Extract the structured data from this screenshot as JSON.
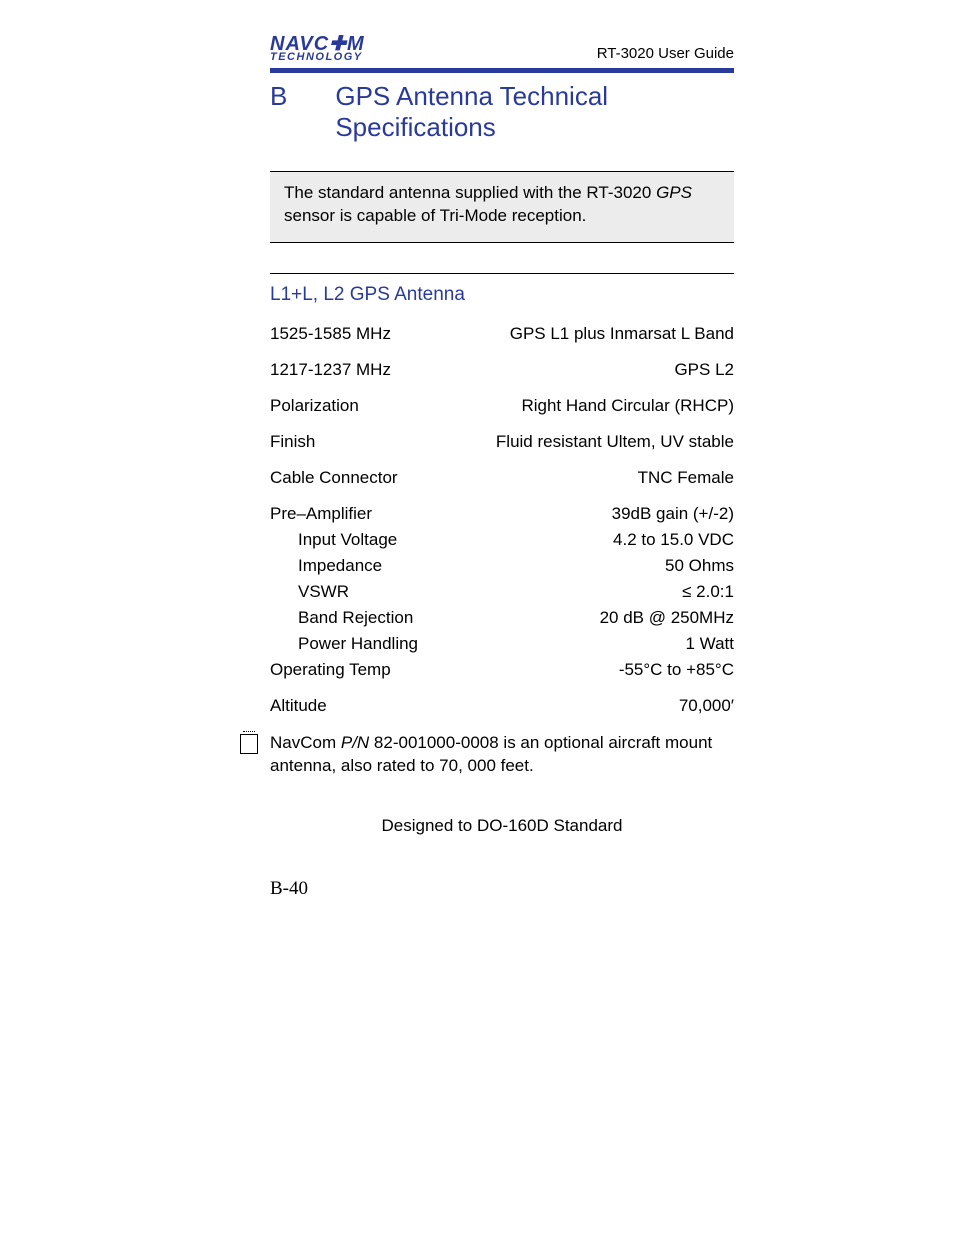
{
  "header": {
    "logo_top": "NAVC✚M",
    "logo_bottom": "TECHNOLOGY",
    "guide_title": "RT-3020 User Guide"
  },
  "chapter": {
    "letter": "B",
    "title": "GPS Antenna Technical Specifications"
  },
  "intro": {
    "line1_a": "The standard antenna supplied with the RT-3020 ",
    "line1_b": "GPS",
    "line2": "sensor is capable of Tri-Mode reception."
  },
  "section_title": "L1+L, L2   GPS Antenna",
  "specs": [
    {
      "label": "1525-1585 MHz",
      "value": "GPS L1 plus Inmarsat L Band",
      "indent": false,
      "tight": false
    },
    {
      "label": "1217-1237 MHz",
      "value": "GPS L2",
      "indent": false,
      "tight": false
    },
    {
      "label": "Polarization",
      "value": "Right Hand Circular (RHCP)",
      "indent": false,
      "tight": false
    },
    {
      "label": "Finish",
      "value": "Fluid resistant Ultem, UV stable",
      "indent": false,
      "tight": false
    },
    {
      "label": "Cable Connector",
      "value": "TNC Female",
      "indent": false,
      "tight": false
    },
    {
      "label": "Pre–Amplifier",
      "value": "39dB gain (+/-2)",
      "indent": false,
      "tight": true
    },
    {
      "label": "Input Voltage",
      "value": "4.2 to 15.0 VDC",
      "indent": true,
      "tight": true
    },
    {
      "label": "Impedance",
      "value": "50 Ohms",
      "indent": true,
      "tight": true
    },
    {
      "label": "VSWR",
      "value": "≤ 2.0:1",
      "indent": true,
      "tight": true
    },
    {
      "label": "Band Rejection",
      "value": "20 dB @ 250MHz",
      "indent": true,
      "tight": true
    },
    {
      "label": "Power Handling",
      "value": "1 Watt",
      "indent": true,
      "tight": true
    },
    {
      "label": "Operating Temp",
      "value": "-55°C to +85°C",
      "indent": false,
      "tight": false
    },
    {
      "label": "Altitude",
      "value": "70,000′",
      "indent": false,
      "tight": false
    }
  ],
  "note": {
    "pre": "NavCom ",
    "pn": "P/N ",
    "post": "82-001000-0008 is an optional aircraft mount antenna, also rated to 70, 000 feet."
  },
  "designed": "Designed to DO-160D Standard",
  "page_number": "B-40",
  "colors": {
    "brand": "#2a3a9a",
    "text": "#000000",
    "box_bg": "#ececec",
    "page_bg": "#ffffff"
  },
  "typography": {
    "body_fontsize_pt": 13,
    "heading_fontsize_pt": 20,
    "section_fontsize_pt": 14
  }
}
